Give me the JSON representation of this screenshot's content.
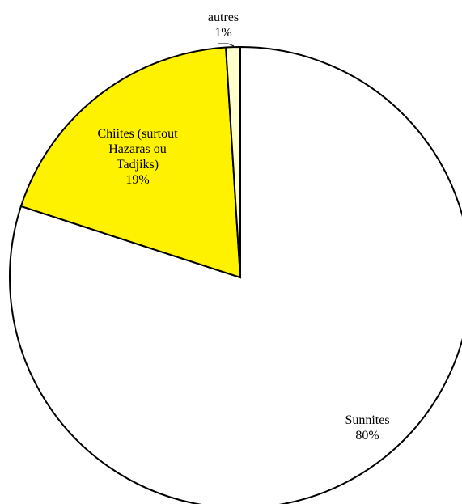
{
  "chart_data": {
    "type": "pie",
    "title": "",
    "slices": [
      {
        "name": "Sunnites",
        "value": 80,
        "percent_label": "80%",
        "label_lines": [
          "Sunnites",
          "80%"
        ],
        "color": "#FFFFFF"
      },
      {
        "name": "Chiites (surtout Hazaras ou Tadjiks)",
        "value": 19,
        "percent_label": "19%",
        "label_lines": [
          "Chiites (surtout",
          "Hazaras ou",
          "Tadjiks)",
          "19%"
        ],
        "color": "#FFF200"
      },
      {
        "name": "autres",
        "value": 1,
        "percent_label": "1%",
        "label_lines": [
          "autres",
          "1%"
        ],
        "color": "#FFFFCC"
      }
    ],
    "start_angle": "12 o'clock",
    "direction": "clockwise",
    "legend": "none"
  }
}
